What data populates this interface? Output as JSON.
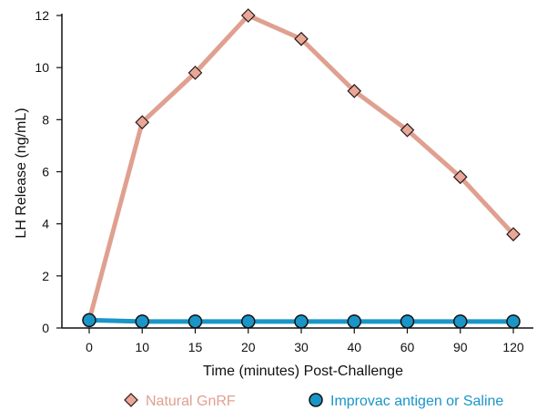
{
  "chart_data": {
    "type": "line",
    "title": "",
    "xlabel": "Time (minutes) Post-Challenge",
    "ylabel": "LH Release (ng/mL)",
    "categories": [
      "0",
      "10",
      "15",
      "20",
      "30",
      "40",
      "60",
      "90",
      "120"
    ],
    "ylim": [
      0,
      12
    ],
    "yticks": [
      0,
      2,
      4,
      6,
      8,
      10,
      12
    ],
    "grid": false,
    "legend_position": "bottom",
    "series": [
      {
        "name": "Natural GnRF",
        "values": [
          0.3,
          7.9,
          9.8,
          12.0,
          11.1,
          9.1,
          7.6,
          5.8,
          3.6
        ],
        "line_color": "#e0a090",
        "marker": "diamond",
        "marker_color": "#e8a898",
        "label_color": "#e0a090"
      },
      {
        "name": "Improvac antigen or Saline",
        "values": [
          0.3,
          0.25,
          0.25,
          0.25,
          0.25,
          0.25,
          0.25,
          0.25,
          0.25
        ],
        "line_color": "#1a95c8",
        "marker": "circle",
        "marker_color": "#1a95c8",
        "label_color": "#1a95c8"
      }
    ]
  }
}
